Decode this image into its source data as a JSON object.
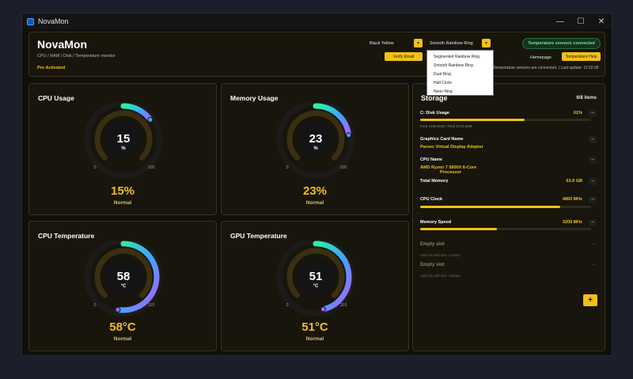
{
  "window": {
    "title": "NovaMon",
    "controls": {
      "minimize": "—",
      "maximize": "☐",
      "close": "✕"
    }
  },
  "header": {
    "title": "NovaMon",
    "subtitle": "CPU / RAM / Disk / Temperature monitor",
    "pro": "Pro Activated",
    "theme_label": "Black Yellow",
    "ring_label": "Smooth Rainbow Ring",
    "verify_label": "Verify Email",
    "sensor_badge": "Temperature sensors connected",
    "homepage_label": "Homepage",
    "temp_help_label": "Temperature Help",
    "status_line": "Temperature sensors are connected.  |  Last update: 11:02:09"
  },
  "ring_dropdown": {
    "options": [
      "Segmented Rainbow Ring",
      "Smooth Rainbow Ring",
      "Dual Ring",
      "Half Circle",
      "Neon Ring"
    ]
  },
  "gauges": [
    {
      "title": "CPU Usage",
      "value": "15",
      "unit": "%",
      "big": "15%",
      "state": "Normal",
      "min": "0",
      "max": "100",
      "fraction": 0.15
    },
    {
      "title": "Memory Usage",
      "value": "23",
      "unit": "%",
      "big": "23%",
      "state": "Normal",
      "min": "0",
      "max": "100",
      "fraction": 0.23
    },
    {
      "title": "CPU Temperature",
      "value": "58",
      "unit": "°C",
      "big": "58°C",
      "state": "Normal",
      "min": "0",
      "max": "110",
      "fraction": 0.527
    },
    {
      "title": "GPU Temperature",
      "value": "51",
      "unit": "°C",
      "big": "51°C",
      "state": "Normal",
      "min": "0",
      "max": "110",
      "fraction": 0.464
    }
  ],
  "storage": {
    "title": "Storage",
    "count": "6/8 items",
    "disk": {
      "label": "C: Disk Usage",
      "value": "61%",
      "sub": "Free 1499.6GB / Total 3724.5GB",
      "fraction": 0.61
    },
    "gpu_name": {
      "label": "Graphics Card Name",
      "value": "Parsec Virtual Display Adapter"
    },
    "cpu_name": {
      "label": "CPU Name",
      "value_line1": "AMD Ryzen 7 5800X 8-Core",
      "value_line2": "Processor"
    },
    "total_memory": {
      "label": "Total Memory",
      "value": "63.9 GB"
    },
    "cpu_clock": {
      "label": "CPU Clock",
      "value": "4850 MHz",
      "fraction": 0.82
    },
    "memory_speed": {
      "label": "Memory Speed",
      "value": "3200 MHz",
      "fraction": 0.45
    },
    "empty_slots": [
      {
        "title": "Empty slot",
        "sub": "Add info with the + button"
      },
      {
        "title": "Empty slot",
        "sub": "Add info with the + button"
      }
    ],
    "minus": "–",
    "dash": "–",
    "plus": "+"
  },
  "colors": {
    "accent": "#f2c01a",
    "background": "#0f0f0c",
    "card": "#17150c"
  }
}
